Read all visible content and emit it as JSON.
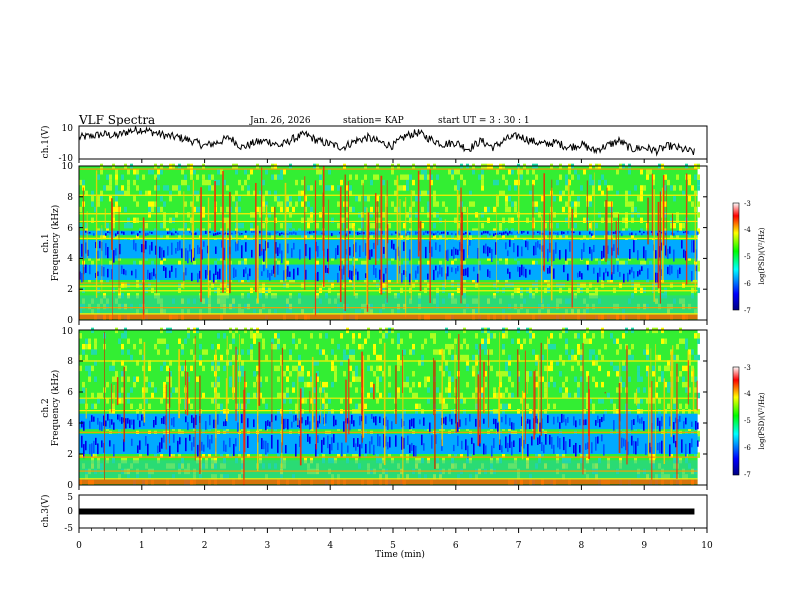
{
  "header": {
    "title": "VLF Spectra",
    "date": "Jan. 26, 2026",
    "station": "station= KAP",
    "start": "start  UT =  3 : 30 : 1"
  },
  "colors": {
    "dark_blue": "#000080",
    "blue": "#0000ff",
    "cyan": "#00ffff",
    "green": "#00ff00",
    "yellow": "#ffff00",
    "red": "#ff0000",
    "black": "#000000"
  },
  "chart_data": [
    {
      "type": "line",
      "id": "ch1-waveform",
      "ylabel": "ch.1(V)",
      "ylim": [
        -10,
        10
      ],
      "yticks": [
        "10",
        "-10"
      ],
      "xlim": [
        0,
        10
      ],
      "description_series": "broadband waveform amplitude",
      "x": [
        0,
        0.2,
        0.4,
        0.6,
        0.8,
        1.0,
        1.2,
        1.4,
        1.6,
        1.8,
        2.0,
        2.2,
        2.4,
        2.6,
        2.8,
        3.0,
        3.2,
        3.4,
        3.6,
        3.8,
        4.0,
        4.2,
        4.4,
        4.6,
        4.8,
        5.0,
        5.2,
        5.4,
        5.6,
        5.8,
        6.0,
        6.2,
        6.4,
        6.6,
        6.8,
        7.0,
        7.2,
        7.4,
        7.6,
        7.8,
        8.0,
        8.2,
        8.4,
        8.6,
        8.8,
        9.0,
        9.2,
        9.4,
        9.6,
        9.8
      ],
      "y": [
        3,
        4,
        5,
        4,
        7,
        8,
        6,
        4,
        3,
        1,
        -2,
        0,
        3,
        -3,
        0,
        1,
        -2,
        2,
        5,
        1,
        -1,
        -3,
        1,
        3,
        0,
        -2,
        4,
        6,
        2,
        -1,
        0,
        -4,
        1,
        -3,
        2,
        4,
        1,
        -1,
        0,
        -3,
        -1,
        -5,
        -2,
        1,
        -4,
        -3,
        -5,
        -2,
        -4,
        -6
      ]
    },
    {
      "type": "heatmap",
      "id": "ch1-spectrogram",
      "ylabel": "ch.1",
      "ylabel2": "Frequency (kHz)",
      "ylim": [
        0,
        10
      ],
      "yticks": [
        "0",
        "2",
        "4",
        "6",
        "8",
        "10"
      ],
      "xlim": [
        0,
        10
      ],
      "colorbar": {
        "label": "log(PSD)(V²/Hz)",
        "range": [
          -7,
          -3
        ],
        "ticks": [
          "-3",
          "-4",
          "-5",
          "-6",
          "-7"
        ]
      },
      "dark_bands_khz": [
        [
          2.6,
          3.6
        ],
        [
          4.0,
          5.2
        ],
        [
          5.5,
          5.8
        ]
      ],
      "strong_lines_khz": [
        0.4,
        0.8,
        1.9,
        2.2,
        2.4,
        5.3,
        6.4,
        6.9,
        8.1,
        9.8
      ],
      "intensity_levels": [
        -7,
        -6,
        -5,
        -4,
        -3
      ]
    },
    {
      "type": "heatmap",
      "id": "ch2-spectrogram",
      "ylabel": "ch.2",
      "ylabel2": "Frequency (kHz)",
      "ylim": [
        0,
        10
      ],
      "yticks": [
        "0",
        "2",
        "4",
        "6",
        "8",
        "10"
      ],
      "xlim": [
        0,
        10
      ],
      "colorbar": {
        "label": "log(PSD)(V²/Hz)",
        "range": [
          -7,
          -3
        ],
        "ticks": [
          "-3",
          "-4",
          "-5",
          "-6",
          "-7"
        ]
      },
      "dark_bands_khz": [
        [
          2.0,
          3.3
        ],
        [
          3.6,
          4.6
        ]
      ],
      "strong_lines_khz": [
        0.4,
        0.9,
        1.8,
        3.4,
        4.8,
        5.6,
        8.0
      ],
      "intensity_levels": [
        -7,
        -6,
        -5,
        -4,
        -3
      ]
    },
    {
      "type": "line",
      "id": "ch3-waveform",
      "ylabel": "ch.3(V)",
      "ylim": [
        -5,
        5
      ],
      "yticks": [
        "5",
        "0",
        "-5"
      ],
      "xlim": [
        0,
        10
      ],
      "x": [
        0,
        2,
        4,
        6,
        8,
        9.8
      ],
      "y": [
        0,
        0,
        0,
        0,
        0,
        0
      ],
      "xlabel": "Time  (min)",
      "xticks": [
        "0",
        "1",
        "2",
        "3",
        "4",
        "5",
        "6",
        "7",
        "8",
        "9",
        "10"
      ]
    }
  ]
}
